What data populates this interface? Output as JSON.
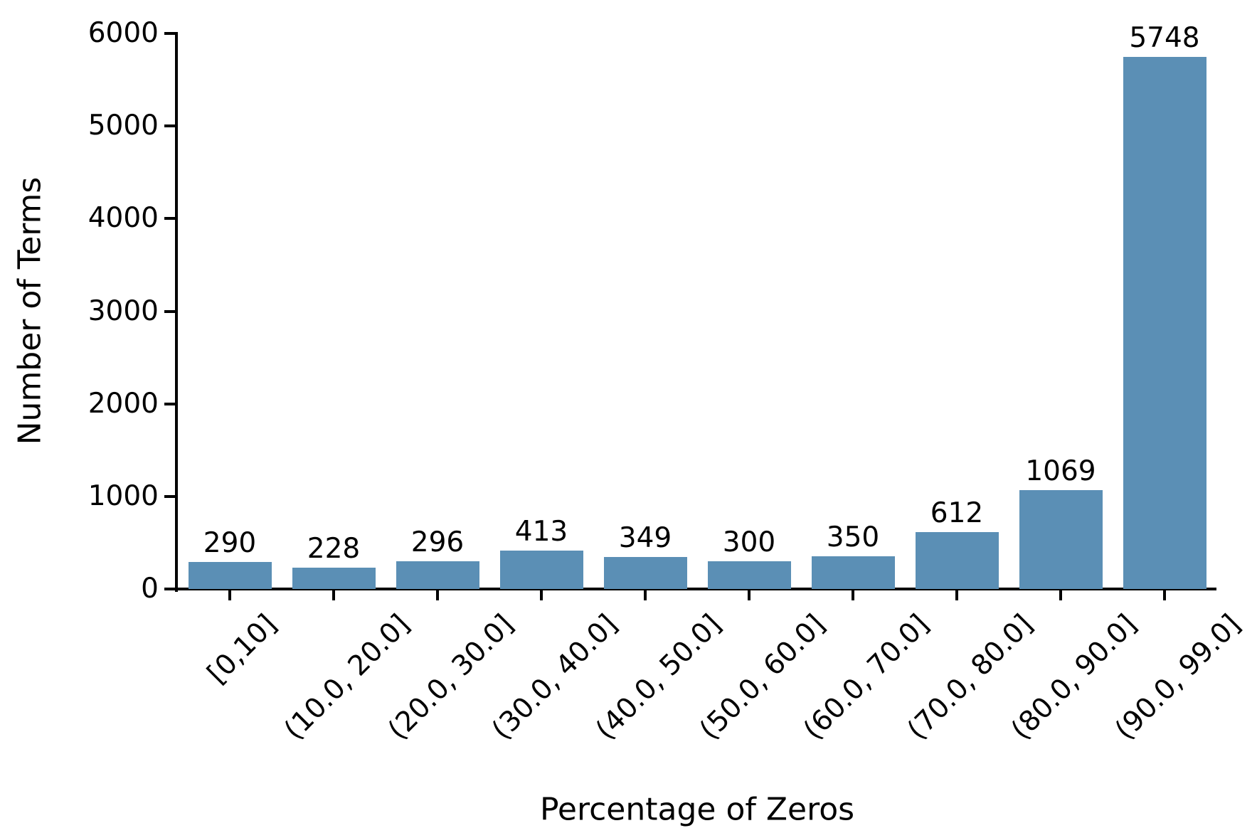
{
  "chart_data": {
    "type": "bar",
    "categories": [
      "[0,10]",
      "(10.0, 20.0]",
      "(20.0, 30.0]",
      "(30.0, 40.0]",
      "(40.0, 50.0]",
      "(50.0, 60.0]",
      "(60.0, 70.0]",
      "(70.0, 80.0]",
      "(80.0, 90.0]",
      "(90.0, 99.0]"
    ],
    "values": [
      290,
      228,
      296,
      413,
      349,
      300,
      350,
      612,
      1069,
      5748
    ],
    "bar_value_labels": [
      "290",
      "228",
      "296",
      "413",
      "349",
      "300",
      "350",
      "612",
      "1069",
      "5748"
    ],
    "title": "",
    "xlabel": "Percentage of Zeros",
    "ylabel": "Number of Terms",
    "ylim": [
      0,
      6000
    ],
    "yticks": [
      0,
      1000,
      2000,
      3000,
      4000,
      5000,
      6000
    ],
    "ytick_labels": [
      "0",
      "1000",
      "2000",
      "3000",
      "4000",
      "5000",
      "6000"
    ],
    "bar_color": "#5b8fb5",
    "axis_color": "#000000",
    "text_color": "#000000",
    "background_color": "#ffffff",
    "grid": false,
    "legend": null,
    "bar_width_fraction": 0.8,
    "xtick_rotation_degrees": 45
  }
}
